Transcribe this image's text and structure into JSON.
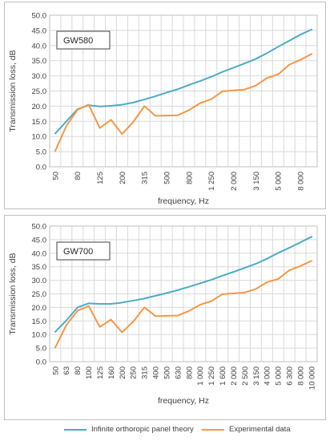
{
  "chart_data": [
    {
      "type": "line",
      "label": "GW580",
      "xlabel": "frequency, Hz",
      "ylabel": "Transmission loss, dB",
      "ylim": [
        0,
        50
      ],
      "ytick_step": 5,
      "ytick_labels": [
        "0.0",
        "5.0",
        "10.0",
        "15.0",
        "20.0",
        "25.0",
        "30.0",
        "35.0",
        "40.0",
        "45.0",
        "50.0"
      ],
      "grid": true,
      "categories": [
        "50",
        "63",
        "80",
        "100",
        "125",
        "160",
        "200",
        "250",
        "315",
        "400",
        "500",
        "630",
        "800",
        "1000",
        "1250",
        "1600",
        "2000",
        "2500",
        "3150",
        "4000",
        "5000",
        "6300",
        "8000",
        "10000"
      ],
      "tick_labels": [
        "50",
        "",
        "80",
        "",
        "125",
        "",
        "200",
        "",
        "315",
        "",
        "500",
        "",
        "800",
        "",
        "1 250",
        "",
        "2 000",
        "",
        "3 150",
        "",
        "5 000",
        "",
        "8 000",
        ""
      ],
      "series": [
        {
          "name": "Infinite orthoropic panel theory",
          "color": "#4bacc6",
          "values": [
            11.0,
            15.0,
            19.0,
            20.3,
            19.9,
            20.1,
            20.5,
            21.2,
            22.2,
            23.3,
            24.5,
            25.6,
            27.0,
            28.3,
            29.7,
            31.3,
            32.7,
            34.1,
            35.6,
            37.5,
            39.6,
            41.6,
            43.6,
            45.3
          ]
        },
        {
          "name": "Experimental data",
          "color": "#f79646",
          "values": [
            5.2,
            13.5,
            18.8,
            20.5,
            12.8,
            15.5,
            10.8,
            14.8,
            20.0,
            16.8,
            16.9,
            17.0,
            18.7,
            21.0,
            22.3,
            24.9,
            25.2,
            25.5,
            26.8,
            29.3,
            30.5,
            33.7,
            35.3,
            37.2
          ]
        }
      ]
    },
    {
      "type": "line",
      "label": "GW700",
      "xlabel": "frequency, Hz",
      "ylabel": "Transmission loss, dB",
      "ylim": [
        0,
        50
      ],
      "ytick_step": 5,
      "ytick_labels": [
        "0.0",
        "5.0",
        "10.0",
        "15.0",
        "20.0",
        "25.0",
        "30.0",
        "35.0",
        "40.0",
        "45.0",
        "50.0"
      ],
      "grid": true,
      "categories": [
        "50",
        "63",
        "80",
        "100",
        "125",
        "160",
        "200",
        "250",
        "315",
        "400",
        "500",
        "630",
        "800",
        "1000",
        "1250",
        "1600",
        "2000",
        "2500",
        "3150",
        "4000",
        "5000",
        "6300",
        "8000",
        "10000"
      ],
      "tick_labels": [
        "50",
        "63",
        "80",
        "100",
        "125",
        "160",
        "200",
        "250",
        "315",
        "400",
        "500",
        "630",
        "800",
        "1 000",
        "1 250",
        "1 600",
        "2 000",
        "2 500",
        "3 150",
        "4 000",
        "5 000",
        "6 300",
        "8 000",
        "10 000"
      ],
      "series": [
        {
          "name": "Infinite orthoropic panel theory",
          "color": "#4bacc6",
          "values": [
            11.0,
            15.2,
            20.0,
            21.5,
            21.3,
            21.3,
            21.8,
            22.5,
            23.3,
            24.3,
            25.3,
            26.4,
            27.6,
            28.9,
            30.2,
            31.7,
            33.1,
            34.6,
            36.1,
            38.0,
            40.1,
            42.0,
            44.0,
            46.1
          ]
        },
        {
          "name": "Experimental data",
          "color": "#f79646",
          "values": [
            5.2,
            13.5,
            18.8,
            20.5,
            12.8,
            15.5,
            10.8,
            14.8,
            20.0,
            16.8,
            16.9,
            17.0,
            18.7,
            21.0,
            22.3,
            24.9,
            25.2,
            25.5,
            26.8,
            29.3,
            30.5,
            33.7,
            35.3,
            37.2
          ]
        }
      ]
    }
  ],
  "legend": {
    "items": [
      {
        "label": "Infinite orthoropic panel theory",
        "color": "#4bacc6"
      },
      {
        "label": "Experimental data",
        "color": "#f79646"
      }
    ]
  }
}
